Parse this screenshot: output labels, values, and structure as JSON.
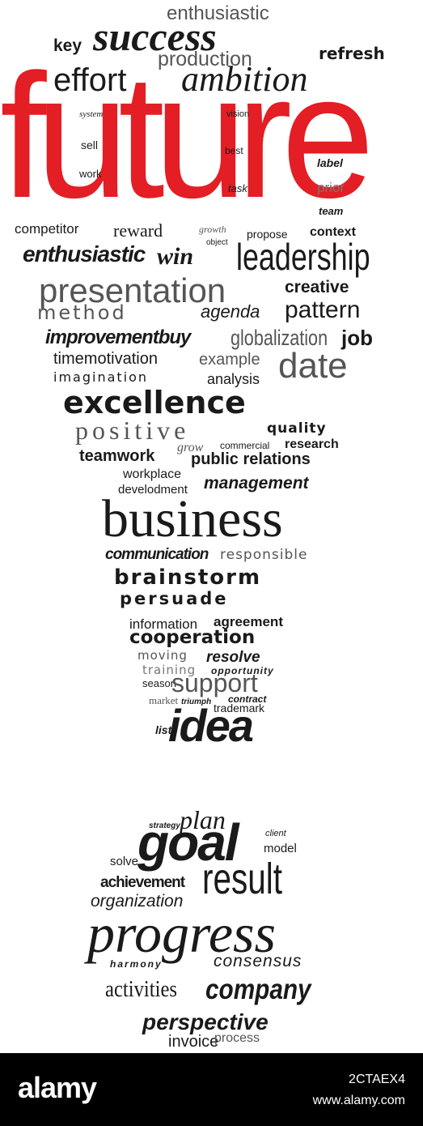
{
  "words": {
    "enthusiastic_top": "enthusiastic",
    "success": "success",
    "key": "key",
    "production": "production",
    "refresh": "refresh",
    "effort": "effort",
    "ambition": "ambition",
    "future": "future",
    "system": "system",
    "vision": "vision",
    "sell": "sell",
    "best": "best",
    "label": "label",
    "work": "work",
    "task": "task",
    "prior": "prior",
    "team": "team",
    "competitor": "competitor",
    "reward": "reward",
    "growth": "growth",
    "object": "object",
    "propose": "propose",
    "context": "context",
    "enthusiastic": "enthusiastic",
    "win": "win",
    "leadership": "leadership",
    "presentation": "presentation",
    "creative": "creative",
    "method": "method",
    "agenda": "agenda",
    "pattern": "pattern",
    "improvementbuy": "improvementbuy",
    "globalization": "globalization",
    "job": "job",
    "timemotivation": "timemotivation",
    "example": "example",
    "imagination": "imagination",
    "analysis": "analysis",
    "date": "date",
    "excellence": "excellence",
    "positive": "positive",
    "quality": "quality",
    "teamwork": "teamwork",
    "grow": "grow",
    "commercial": "commercial",
    "research": "research",
    "public_relations": "public relations",
    "workplace": "workplace",
    "develodment": "develodment",
    "management": "management",
    "business": "business",
    "communication": "communication",
    "responsible": "responsible",
    "brainstorm": "brainstorm",
    "persuade": "persuade",
    "information": "information",
    "agreement": "agreement",
    "cooperation": "cooperation",
    "moving": "moving",
    "resolve": "resolve",
    "training": "training",
    "opportunity": "opportunity",
    "season": "season",
    "support": "support",
    "market": "market",
    "triumph": "triumph",
    "contract": "contract",
    "trademark": "trademark",
    "list": "list",
    "idea": "idea",
    "strategy": "strategy",
    "plan": "plan",
    "client": "client",
    "goal": "goal",
    "solve": "solve",
    "model": "model",
    "achievement": "achievement",
    "result": "result",
    "organization": "organization",
    "progress": "progress",
    "harmony": "harmony",
    "consensus": "consensus",
    "activities": "activities",
    "company": "company",
    "perspective": "perspective",
    "invoice": "invoice",
    "process": "process"
  },
  "footer": {
    "logo": "alamy",
    "image_id": "2CTAEX4",
    "url": "www.alamy.com"
  },
  "colors": {
    "accent": "#e31e24",
    "text": "#1a1a1a",
    "footer_bg": "#000000"
  }
}
